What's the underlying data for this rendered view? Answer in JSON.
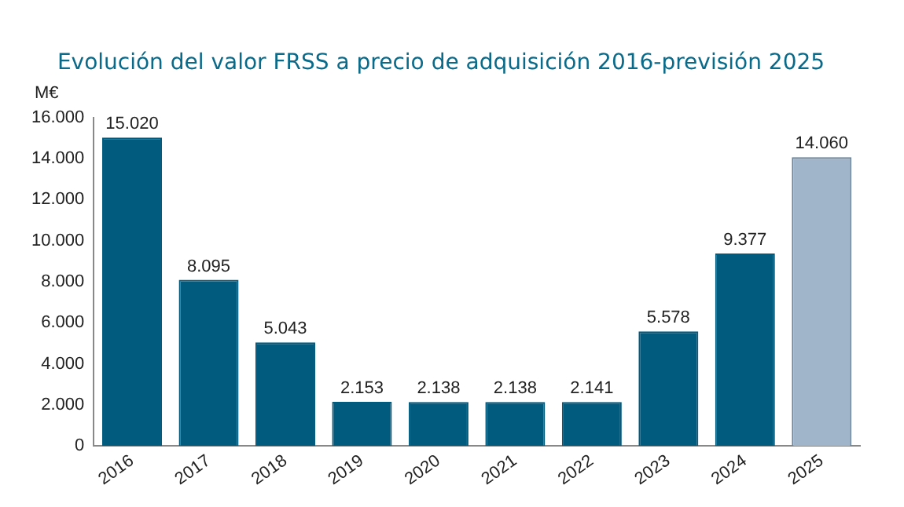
{
  "chart_data": {
    "type": "bar",
    "title": "Evolución del valor FRSS a precio de adquisición 2016-previsión 2025",
    "ylabel": "M€",
    "categories": [
      "2016",
      "2017",
      "2018",
      "2019",
      "2020",
      "2021",
      "2022",
      "2023",
      "2024",
      "2025"
    ],
    "values": [
      15020,
      8095,
      5043,
      2153,
      2138,
      2138,
      2141,
      5578,
      9377,
      14060
    ],
    "colors": [
      "#005b7f",
      "#005b7f",
      "#005b7f",
      "#005b7f",
      "#005b7f",
      "#005b7f",
      "#005b7f",
      "#005b7f",
      "#005b7f",
      "#a0b5c9"
    ],
    "value_labels": [
      "15.020",
      "8.095",
      "5.043",
      "2.153",
      "2.138",
      "2.138",
      "2.141",
      "5.578",
      "9.377",
      "14.060"
    ],
    "ylim": [
      0,
      16000
    ],
    "yticks": [
      {
        "value": 0,
        "label": "0"
      },
      {
        "value": 2000,
        "label": "2.000"
      },
      {
        "value": 4000,
        "label": "4.000"
      },
      {
        "value": 6000,
        "label": "6.000"
      },
      {
        "value": 8000,
        "label": "8.000"
      },
      {
        "value": 10000,
        "label": "10.000"
      },
      {
        "value": 12000,
        "label": "12.000"
      },
      {
        "value": 14000,
        "label": "14.000"
      },
      {
        "value": 16000,
        "label": "16.000"
      }
    ],
    "grid": false,
    "legend": false
  }
}
